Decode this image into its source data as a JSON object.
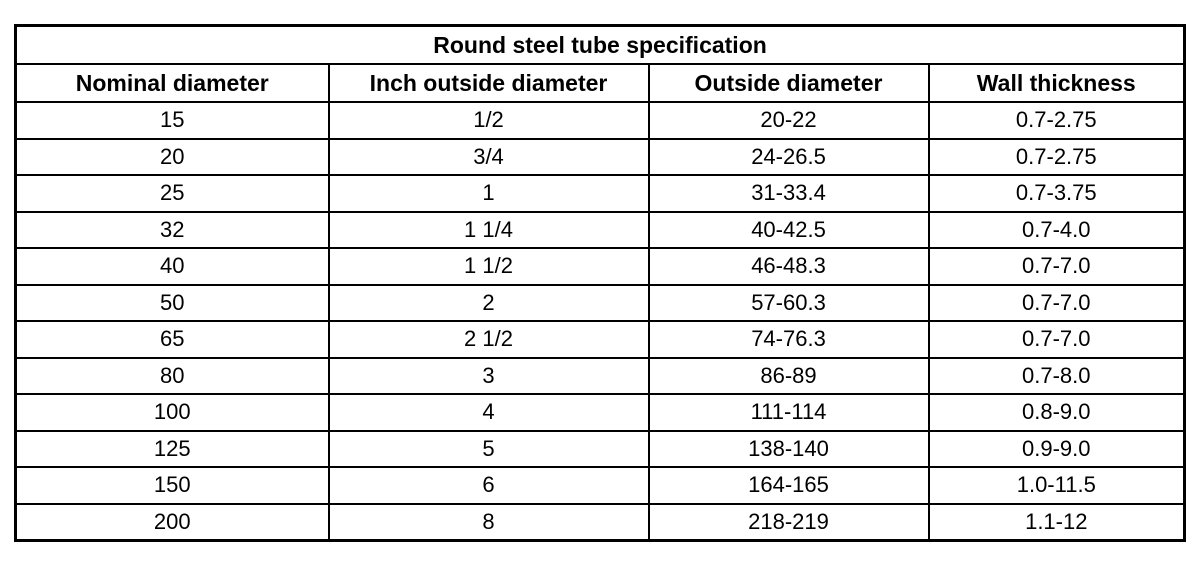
{
  "title": "Round steel tube specification",
  "colors": {
    "border": "#000000",
    "text": "#000000",
    "background": "#ffffff"
  },
  "chart_data": {
    "type": "table",
    "title": "Round steel tube specification",
    "columns": [
      "Nominal diameter",
      "Inch outside diameter",
      "Outside diameter",
      "Wall thickness"
    ],
    "rows": [
      [
        "15",
        "1/2",
        "20-22",
        "0.7-2.75"
      ],
      [
        "20",
        "3/4",
        "24-26.5",
        "0.7-2.75"
      ],
      [
        "25",
        "1",
        "31-33.4",
        "0.7-3.75"
      ],
      [
        "32",
        "1 1/4",
        "40-42.5",
        "0.7-4.0"
      ],
      [
        "40",
        "1 1/2",
        "46-48.3",
        "0.7-7.0"
      ],
      [
        "50",
        "2",
        "57-60.3",
        "0.7-7.0"
      ],
      [
        "65",
        "2 1/2",
        "74-76.3",
        "0.7-7.0"
      ],
      [
        "80",
        "3",
        "86-89",
        "0.7-8.0"
      ],
      [
        "100",
        "4",
        "111-114",
        "0.8-9.0"
      ],
      [
        "125",
        "5",
        "138-140",
        "0.9-9.0"
      ],
      [
        "150",
        "6",
        "164-165",
        "1.0-11.5"
      ],
      [
        "200",
        "8",
        "218-219",
        "1.1-12"
      ]
    ]
  }
}
